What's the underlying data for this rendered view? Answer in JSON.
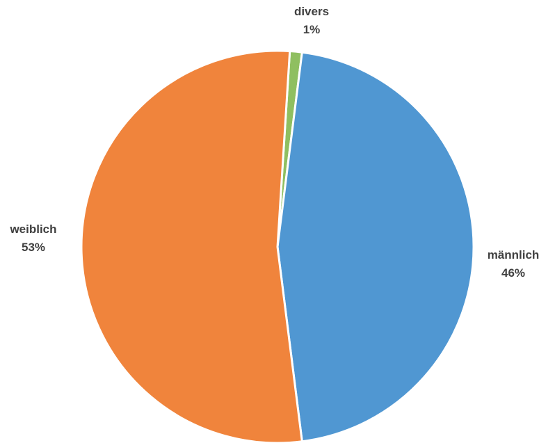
{
  "chart_data": {
    "type": "pie",
    "title": "",
    "start_angle_deg": 3.6,
    "direction": "clockwise",
    "slices": [
      {
        "label": "divers",
        "value": 1,
        "value_label": "1%",
        "color": "#8fbf60"
      },
      {
        "label": "männlich",
        "value": 46,
        "value_label": "46%",
        "color": "#5097d2"
      },
      {
        "label": "weiblich",
        "value": 53,
        "value_label": "53%",
        "color": "#f0843c"
      }
    ],
    "legend": "none",
    "border_color": "#ffffff"
  }
}
